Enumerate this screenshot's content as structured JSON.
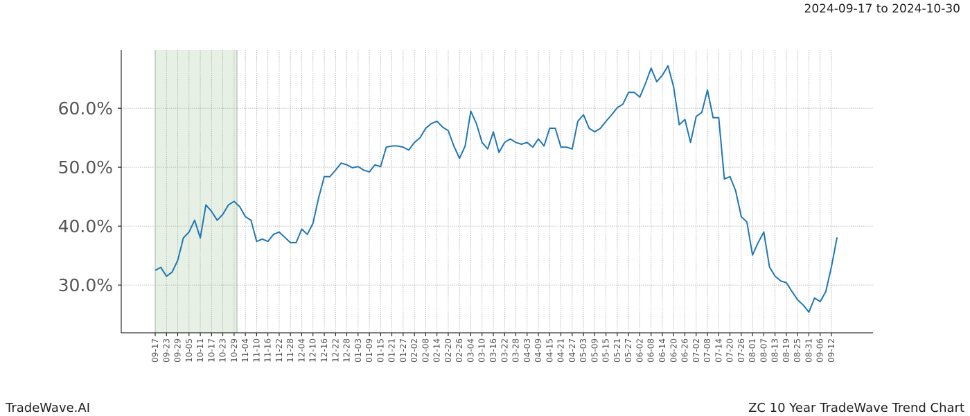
{
  "chart_data": {
    "type": "line",
    "subtitle": "2024-09-17 to 2024-10-30",
    "footer_left": "TradeWave.AI",
    "footer_right": "ZC 10 Year TradeWave Trend Chart",
    "color": "#1f77b4",
    "grid": true,
    "ylim": [
      21.9,
      69.9
    ],
    "yticks": [
      {
        "value": 30,
        "label": "30.0%"
      },
      {
        "value": 40,
        "label": "40.0%"
      },
      {
        "value": 50,
        "label": "50.0%"
      },
      {
        "value": 60,
        "label": "60.0%"
      }
    ],
    "categories": [
      "09-17",
      null,
      "09-23",
      null,
      "09-29",
      null,
      "10-05",
      null,
      "10-11",
      null,
      "10-17",
      null,
      "10-23",
      null,
      "10-29",
      null,
      "11-04",
      null,
      "11-10",
      null,
      "11-16",
      null,
      "11-22",
      null,
      "11-28",
      null,
      "12-04",
      null,
      "12-10",
      null,
      "12-16",
      null,
      "12-22",
      null,
      "12-28",
      null,
      "01-03",
      null,
      "01-09",
      null,
      "01-15",
      null,
      "01-21",
      null,
      "01-27",
      null,
      "02-02",
      null,
      "02-08",
      null,
      "02-14",
      null,
      "02-20",
      null,
      "02-26",
      null,
      "03-04",
      null,
      "03-10",
      null,
      "03-16",
      null,
      "03-22",
      null,
      "03-28",
      null,
      "04-03",
      null,
      "04-09",
      null,
      "04-15",
      null,
      "04-21",
      null,
      "04-27",
      null,
      "05-03",
      null,
      "05-09",
      null,
      "05-15",
      null,
      "05-21",
      null,
      "05-27",
      null,
      "06-02",
      null,
      "06-08",
      null,
      "06-14",
      null,
      "06-20",
      null,
      "06-26",
      null,
      "07-02",
      null,
      "07-08",
      null,
      "07-14",
      null,
      "07-20",
      null,
      "07-26",
      null,
      "08-01",
      null,
      "08-07",
      null,
      "08-13",
      null,
      "08-19",
      null,
      "08-25",
      null,
      "08-31",
      null,
      "09-06",
      null,
      "09-12",
      null
    ],
    "values": [
      32.5,
      33,
      31.5,
      32.2,
      34.2,
      38,
      39,
      41,
      38,
      43.6,
      42.5,
      41,
      42,
      43.6,
      44.2,
      43.3,
      41.6,
      41,
      37.4,
      37.8,
      37.4,
      38.6,
      39,
      38.1,
      37.2,
      37.2,
      39.5,
      38.6,
      40.5,
      44.8,
      48.4,
      48.4,
      49.5,
      50.7,
      50.4,
      49.9,
      50.1,
      49.5,
      49.2,
      50.4,
      50.1,
      53.4,
      53.6,
      53.6,
      53.4,
      52.9,
      54.2,
      55,
      56.6,
      57.4,
      57.8,
      56.8,
      56.2,
      53.6,
      51.5,
      53.6,
      59.5,
      57.4,
      54.2,
      53.1,
      56,
      52.5,
      54.2,
      54.8,
      54.2,
      53.9,
      54.2,
      53.4,
      54.8,
      53.6,
      56.6,
      56.6,
      53.4,
      53.4,
      53.1,
      57.8,
      58.9,
      56.6,
      56,
      56.6,
      57.8,
      58.9,
      60.1,
      60.7,
      62.7,
      62.7,
      61.9,
      64.2,
      66.8,
      64.5,
      65.6,
      67.2,
      63.6,
      57.2,
      58.1,
      54.2,
      58.6,
      59.3,
      63.1,
      58.4,
      58.4,
      48,
      48.4,
      46,
      41.6,
      40.7,
      35.1,
      37.2,
      39,
      33.1,
      31.5,
      30.7,
      30.4,
      28.9,
      27.5,
      26.6,
      25.4,
      27.8,
      27.2,
      28.9,
      33.1,
      38.1
    ]
  }
}
